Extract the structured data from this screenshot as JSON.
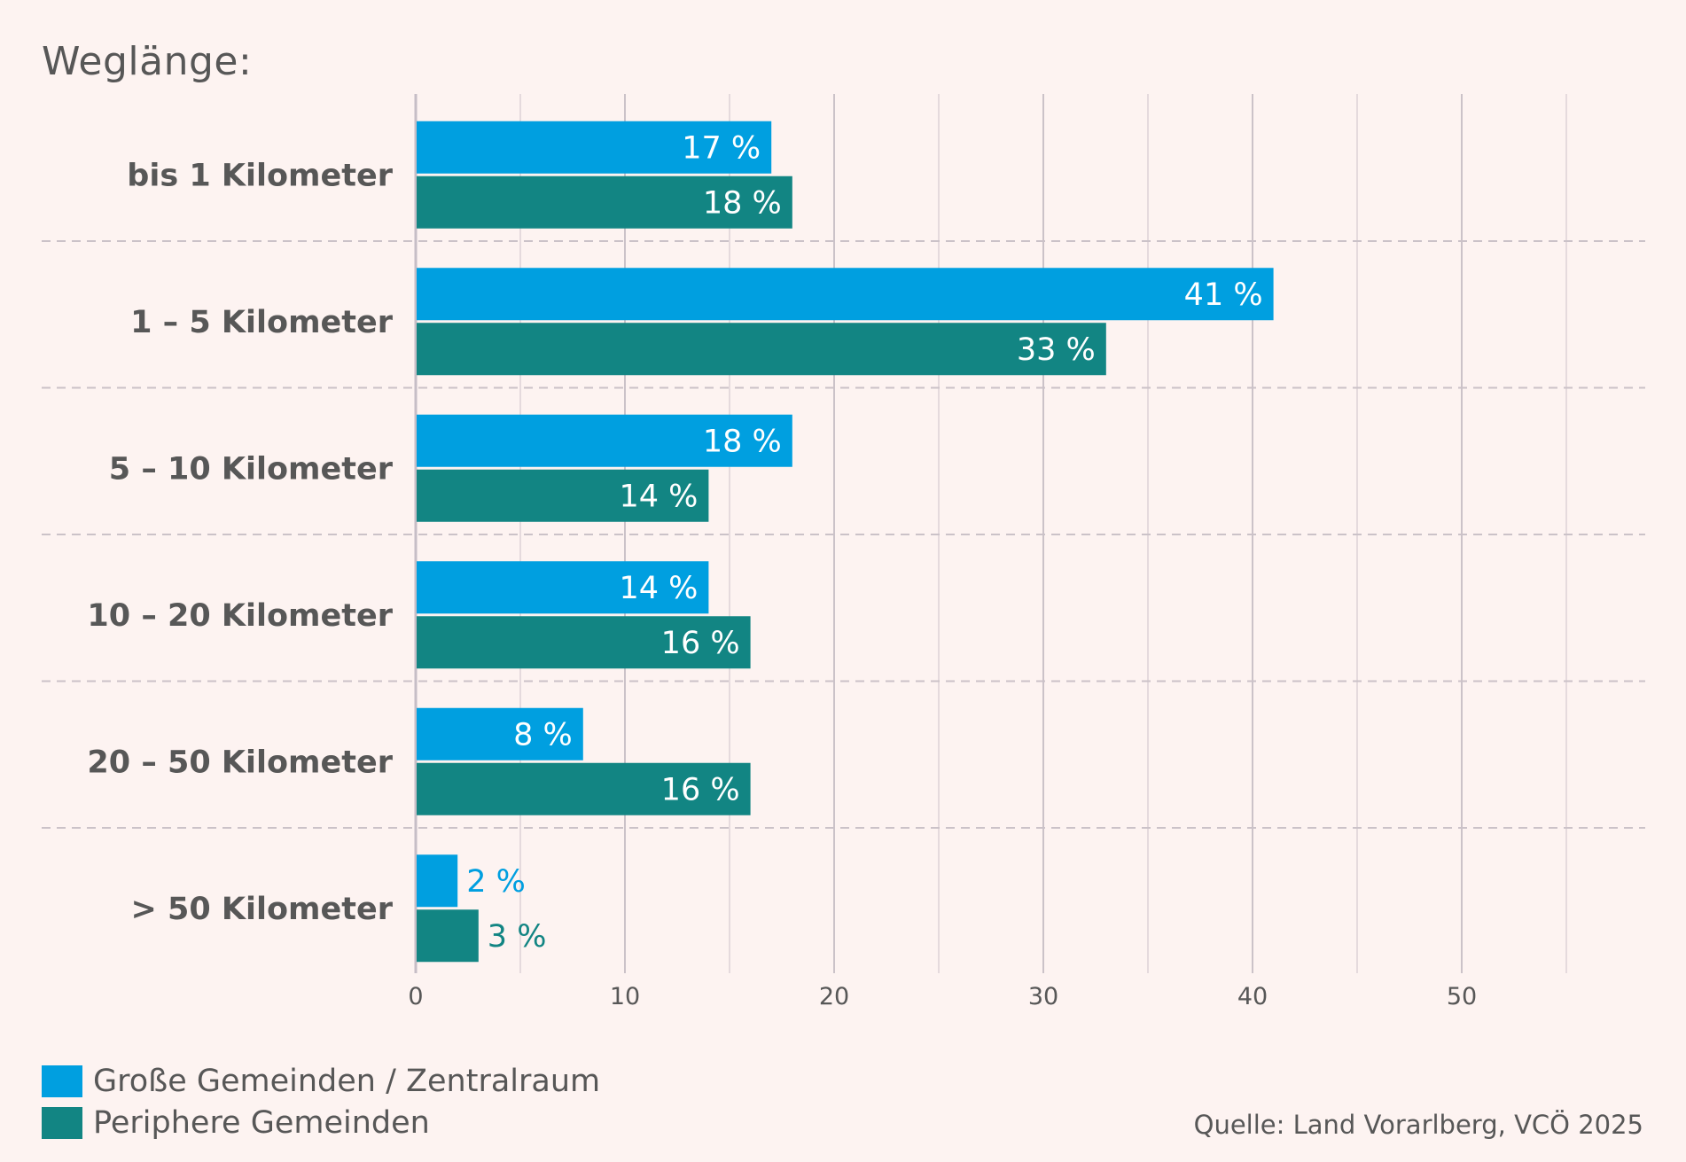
{
  "title": "Weglänge:",
  "source": "Quelle: Land Vorarlberg, VCÖ 2025",
  "colors": {
    "series1": "#009fe0",
    "series2": "#128583",
    "grid": "#cbc2c8",
    "text": "#575757",
    "background": "#fdf3f1"
  },
  "chart_data": {
    "type": "bar",
    "orientation": "horizontal",
    "title": "Weglänge:",
    "xlabel": "",
    "ylabel": "",
    "categories": [
      "bis 1 Kilometer",
      "1 – 5 Kilometer",
      "5 – 10 Kilometer",
      "10 – 20 Kilometer",
      "20 – 50 Kilometer",
      "> 50 Kilometer"
    ],
    "series": [
      {
        "name": "Große Gemeinden / Zentralraum",
        "color": "#009fe0",
        "values": [
          17,
          41,
          18,
          14,
          8,
          2
        ]
      },
      {
        "name": "Periphere Gemeinden",
        "color": "#128583",
        "values": [
          18,
          33,
          14,
          16,
          16,
          3
        ]
      }
    ],
    "value_suffix": " %",
    "xlim": [
      0,
      58
    ],
    "xticks": [
      0,
      10,
      20,
      30,
      40,
      50
    ],
    "minor_grid_step": 5,
    "grid": true,
    "legend_position": "bottom-left"
  }
}
